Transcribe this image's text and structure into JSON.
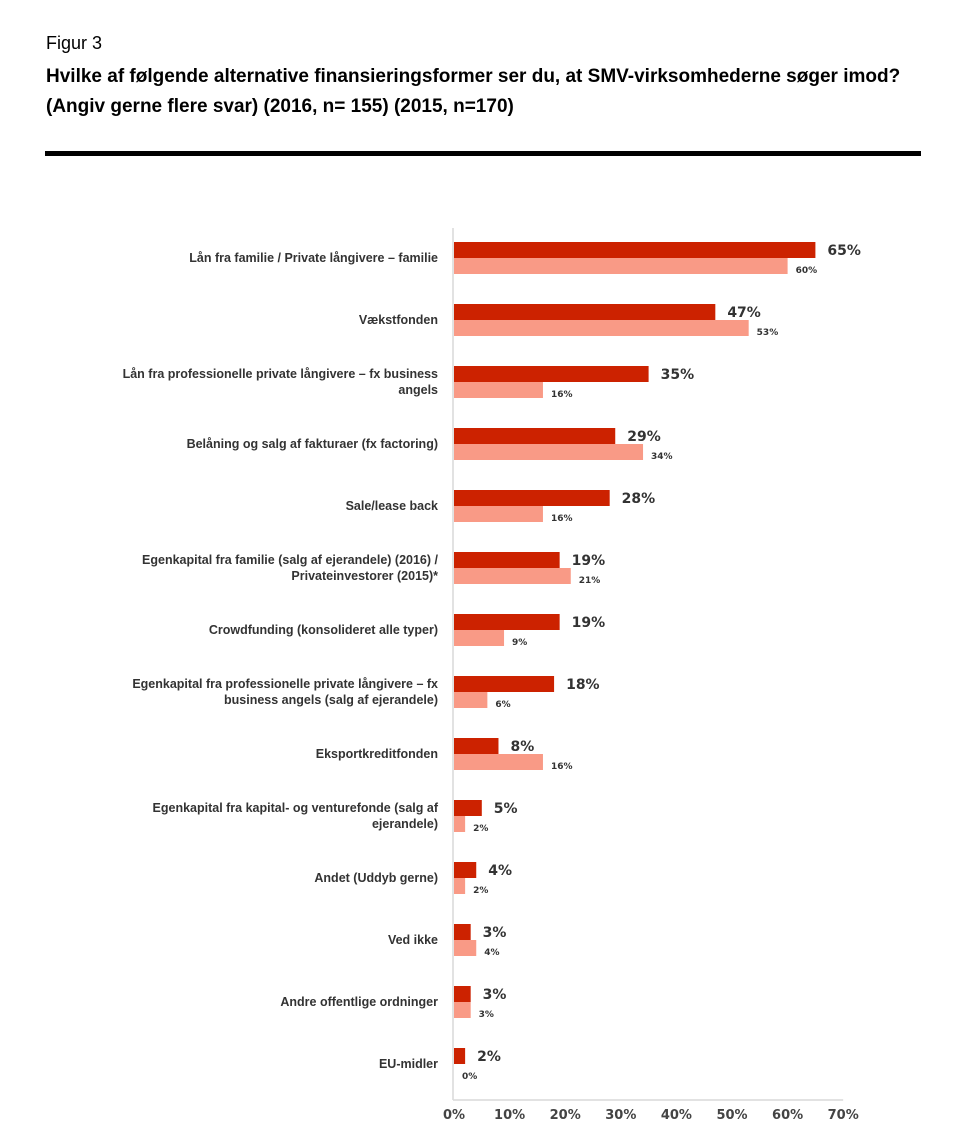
{
  "figure_label": "Figur 3",
  "chart_data": {
    "type": "bar",
    "orientation": "horizontal",
    "title": "Hvilke af følgende alternative finansieringsformer ser du, at SMV-virksomhederne søger imod? (Angiv gerne flere svar) (2016, n= 155) (2015, n=170)",
    "xlabel": "",
    "ylabel": "",
    "xlim": [
      0,
      70
    ],
    "x_ticks": [
      "0%",
      "10%",
      "20%",
      "30%",
      "40%",
      "50%",
      "60%",
      "70%"
    ],
    "grid": false,
    "categories": [
      [
        "Lån fra familie / Private långivere – familie"
      ],
      [
        "Vækstfonden"
      ],
      [
        "Lån fra professionelle private långivere – fx business",
        "angels"
      ],
      [
        "Belåning og salg af fakturaer (fx factoring)"
      ],
      [
        "Sale/lease back"
      ],
      [
        "Egenkapital fra familie (salg af ejerandele) (2016)  /",
        "Privateinvestorer (2015)*"
      ],
      [
        "Crowdfunding (konsolideret alle typer)"
      ],
      [
        "Egenkapital fra professionelle private långivere – fx",
        "business angels (salg af ejerandele)"
      ],
      [
        "Eksportkreditfonden"
      ],
      [
        "Egenkapital fra kapital- og venturefonde (salg af",
        "ejerandele)"
      ],
      [
        "Andet (Uddyb gerne)"
      ],
      [
        "Ved ikke"
      ],
      [
        "Andre offentlige ordninger"
      ],
      [
        "EU-midler"
      ]
    ],
    "series": [
      {
        "color": "#cc2200",
        "values": [
          65,
          47,
          35,
          29,
          28,
          19,
          19,
          18,
          8,
          5,
          4,
          3,
          3,
          2
        ]
      },
      {
        "color": "#f99a86",
        "values": [
          60,
          53,
          16,
          34,
          16,
          21,
          9,
          6,
          16,
          2,
          2,
          4,
          3,
          0
        ]
      }
    ]
  }
}
